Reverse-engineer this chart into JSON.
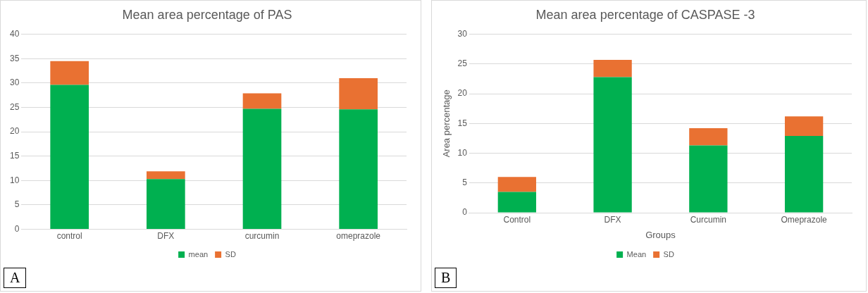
{
  "chart_data": [
    {
      "type": "bar",
      "title": "Mean area percentage of PAS",
      "categories": [
        "control",
        "DFX",
        "curcumin",
        "omeprazole"
      ],
      "stacked": true,
      "series": [
        {
          "name": "mean",
          "color": "#00b050",
          "values": [
            29.6,
            10.3,
            24.7,
            24.6
          ]
        },
        {
          "name": "SD",
          "color": "#e97132",
          "values": [
            4.9,
            1.6,
            3.2,
            6.4
          ]
        }
      ],
      "ylim": [
        0,
        40
      ],
      "yticks": [
        0,
        5,
        10,
        15,
        20,
        25,
        30,
        35,
        40
      ],
      "grid": "y",
      "legend": "bottom",
      "annotations": [
        "A"
      ]
    },
    {
      "type": "bar",
      "title": "Mean area percentage of CASPASE -3",
      "xlabel": "Groups",
      "ylabel": "Area percentage",
      "categories": [
        "Control",
        "DFX",
        "Curcumin",
        "Omeprazole"
      ],
      "stacked": true,
      "series": [
        {
          "name": "Mean",
          "color": "#00b050",
          "values": [
            3.5,
            22.8,
            11.3,
            12.9
          ]
        },
        {
          "name": "SD",
          "color": "#e97132",
          "values": [
            2.5,
            2.9,
            2.9,
            3.3
          ]
        }
      ],
      "ylim": [
        0,
        30
      ],
      "yticks": [
        0,
        5,
        10,
        15,
        20,
        25,
        30
      ],
      "grid": "y",
      "legend": "bottom",
      "annotations": [
        "B"
      ]
    }
  ]
}
